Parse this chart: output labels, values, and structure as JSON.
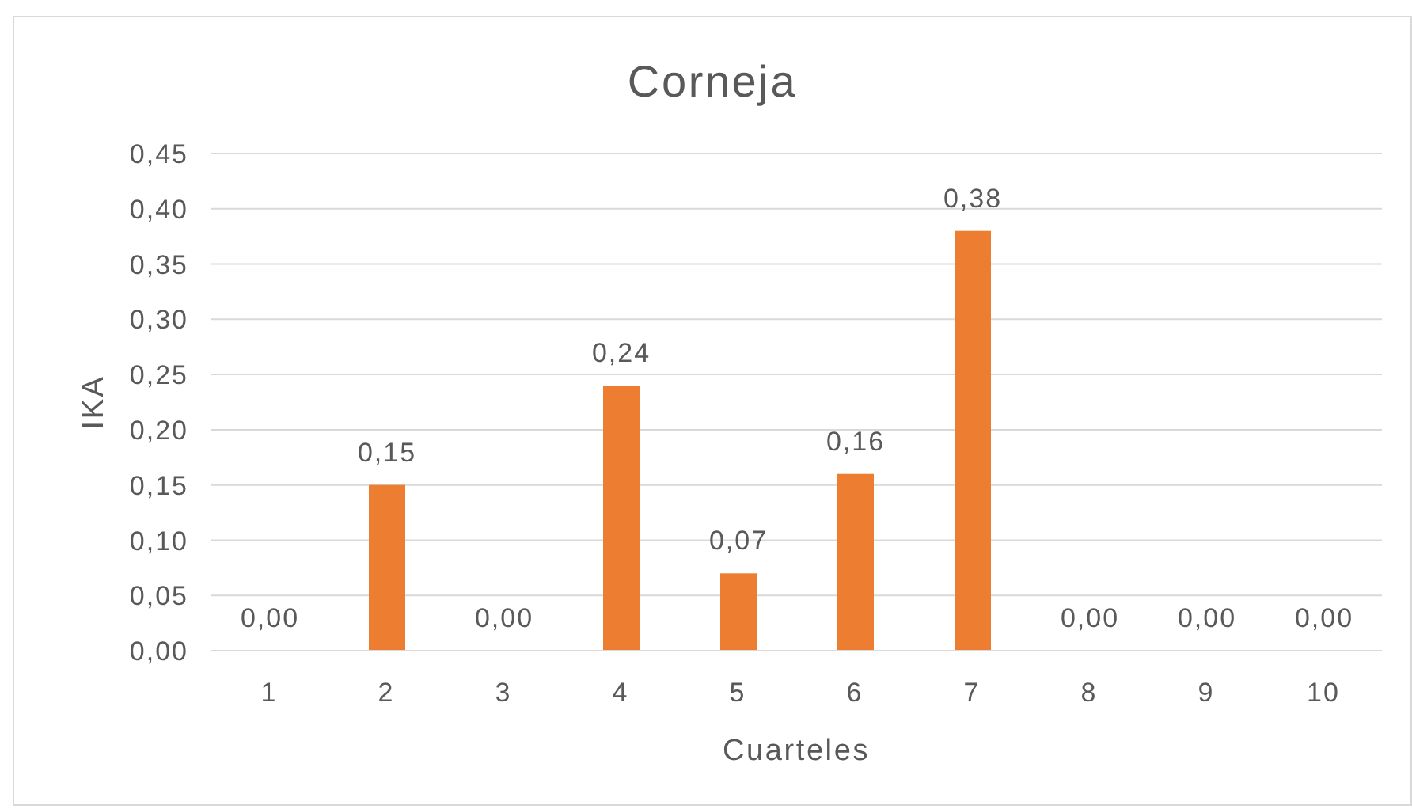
{
  "chart_data": {
    "type": "bar",
    "title": "Corneja",
    "xlabel": "Cuarteles",
    "ylabel": "IKA",
    "categories": [
      "1",
      "2",
      "3",
      "4",
      "5",
      "6",
      "7",
      "8",
      "9",
      "10"
    ],
    "values": [
      0,
      0.15,
      0,
      0.24,
      0.07,
      0.16,
      0.38,
      0,
      0,
      0
    ],
    "value_labels": [
      "0,00",
      "0,15",
      "0,00",
      "0,24",
      "0,07",
      "0,16",
      "0,38",
      "0,00",
      "0,00",
      "0,00"
    ],
    "color": "#ed7d31",
    "ylim": [
      0,
      0.45
    ],
    "yticks": [
      {
        "value": 0,
        "label": "0,00"
      },
      {
        "value": 0.05,
        "label": "0,05"
      },
      {
        "value": 0.1,
        "label": "0,10"
      },
      {
        "value": 0.15,
        "label": "0,15"
      },
      {
        "value": 0.2,
        "label": "0,20"
      },
      {
        "value": 0.25,
        "label": "0,25"
      },
      {
        "value": 0.3,
        "label": "0,30"
      },
      {
        "value": 0.35,
        "label": "0,35"
      },
      {
        "value": 0.4,
        "label": "0,40"
      },
      {
        "value": 0.45,
        "label": "0,45"
      }
    ],
    "grid": "y",
    "legend": false
  }
}
